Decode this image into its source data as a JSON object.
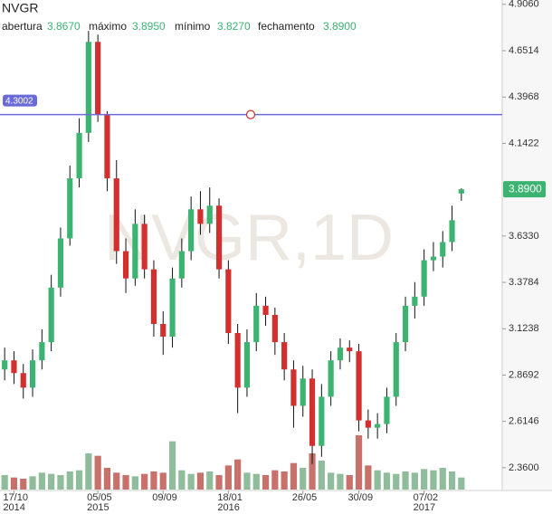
{
  "chart_data": {
    "type": "candlestick",
    "title": "NVGR",
    "watermark": "NVGR,1D",
    "ohlc_header": [
      {
        "name": "abertura",
        "value": 3.867,
        "label": "3.8670"
      },
      {
        "name": "máximo",
        "value": 3.895,
        "label": "3.8950"
      },
      {
        "name": "mínimo",
        "value": 3.827,
        "label": "3.8270"
      },
      {
        "name": "fechamento",
        "value": 3.89,
        "label": "3.8900"
      }
    ],
    "last_price": {
      "value": 3.89,
      "label": "3.8900"
    },
    "hline": {
      "value": 4.3002,
      "label": "4.3002",
      "color": "#6b6bd8"
    },
    "up_color": "#3cb371",
    "down_color": "#d32f2f",
    "volume_up_color": "#8fbc9a",
    "volume_down_color": "#c8706a",
    "ylim": [
      2.24,
      4.93
    ],
    "yticks": [
      {
        "value": 2.36,
        "label": "2.3600"
      },
      {
        "value": 2.6146,
        "label": "2.6146"
      },
      {
        "value": 2.8692,
        "label": "2.8692"
      },
      {
        "value": 3.1238,
        "label": "3.1238"
      },
      {
        "value": 3.3784,
        "label": "3.3784"
      },
      {
        "value": 3.633,
        "label": "3.6330"
      },
      {
        "value": 4.1422,
        "label": "4.1422"
      },
      {
        "value": 4.3968,
        "label": "4.3968"
      },
      {
        "value": 4.6514,
        "label": "4.6514"
      },
      {
        "value": 4.906,
        "label": "4.9060"
      }
    ],
    "xlim": [
      -0.5,
      49.5
    ],
    "xticks": [
      {
        "value": 1,
        "label": "17/10",
        "year": "2014"
      },
      {
        "value": 10,
        "label": "05/05",
        "year": "2015"
      },
      {
        "value": 17,
        "label": "09/09"
      },
      {
        "value": 24,
        "label": "18/01",
        "year": "2016"
      },
      {
        "value": 32,
        "label": "26/05"
      },
      {
        "value": 38,
        "label": "30/09"
      },
      {
        "value": 45,
        "label": "07/02",
        "year": "2017"
      }
    ],
    "open": [
      2.9,
      2.95,
      2.88,
      2.8,
      2.95,
      3.05,
      3.35,
      3.62,
      3.95,
      4.2,
      4.7,
      4.3,
      3.95,
      3.55,
      3.4,
      3.7,
      3.45,
      3.15,
      3.08,
      3.4,
      3.55,
      3.78,
      3.7,
      3.8,
      3.45,
      3.1,
      2.8,
      3.05,
      3.25,
      3.2,
      3.05,
      2.9,
      2.7,
      2.85,
      2.48,
      2.75,
      2.95,
      3.02,
      3.0,
      2.62,
      2.58,
      2.6,
      2.75,
      3.05,
      3.25,
      3.3,
      3.5,
      3.52,
      3.6,
      3.867
    ],
    "high": [
      3.02,
      3.0,
      2.93,
      3.01,
      3.12,
      3.42,
      3.68,
      4.02,
      4.28,
      4.76,
      4.74,
      4.32,
      4.05,
      3.62,
      3.78,
      3.75,
      3.5,
      3.22,
      3.46,
      3.62,
      3.85,
      3.88,
      3.9,
      3.84,
      3.5,
      3.15,
      3.12,
      3.32,
      3.3,
      3.24,
      3.1,
      2.95,
      2.92,
      2.9,
      2.82,
      3.0,
      3.07,
      3.06,
      3.04,
      2.68,
      2.66,
      2.8,
      3.1,
      3.3,
      3.38,
      3.56,
      3.6,
      3.66,
      3.8,
      3.895
    ],
    "low": [
      2.84,
      2.82,
      2.74,
      2.75,
      2.9,
      3.0,
      3.3,
      3.58,
      3.9,
      4.15,
      4.26,
      3.88,
      3.48,
      3.32,
      3.36,
      3.4,
      3.08,
      2.98,
      3.02,
      3.35,
      3.5,
      3.64,
      3.65,
      3.4,
      3.04,
      2.66,
      2.75,
      3.0,
      3.14,
      2.98,
      2.84,
      2.58,
      2.64,
      2.38,
      2.42,
      2.7,
      2.9,
      2.94,
      2.56,
      2.52,
      2.52,
      2.55,
      2.7,
      3.0,
      3.18,
      3.25,
      3.44,
      3.46,
      3.55,
      3.827
    ],
    "close": [
      2.95,
      2.88,
      2.8,
      2.95,
      3.05,
      3.35,
      3.62,
      3.95,
      4.2,
      4.7,
      4.3,
      3.95,
      3.55,
      3.4,
      3.7,
      3.45,
      3.15,
      3.08,
      3.4,
      3.55,
      3.78,
      3.7,
      3.8,
      3.45,
      3.1,
      2.8,
      3.05,
      3.25,
      3.2,
      3.05,
      2.9,
      2.7,
      2.85,
      2.48,
      2.75,
      2.95,
      3.02,
      3.0,
      2.62,
      2.58,
      2.6,
      2.75,
      3.05,
      3.25,
      3.3,
      3.5,
      3.52,
      3.6,
      3.72,
      3.89
    ],
    "volume": [
      12,
      10,
      9,
      11,
      14,
      13,
      12,
      15,
      16,
      30,
      28,
      18,
      14,
      12,
      11,
      13,
      15,
      14,
      40,
      16,
      13,
      14,
      15,
      12,
      20,
      25,
      14,
      13,
      12,
      16,
      15,
      22,
      18,
      30,
      24,
      14,
      13,
      12,
      45,
      20,
      16,
      14,
      13,
      15,
      14,
      17,
      16,
      18,
      15,
      10
    ]
  }
}
